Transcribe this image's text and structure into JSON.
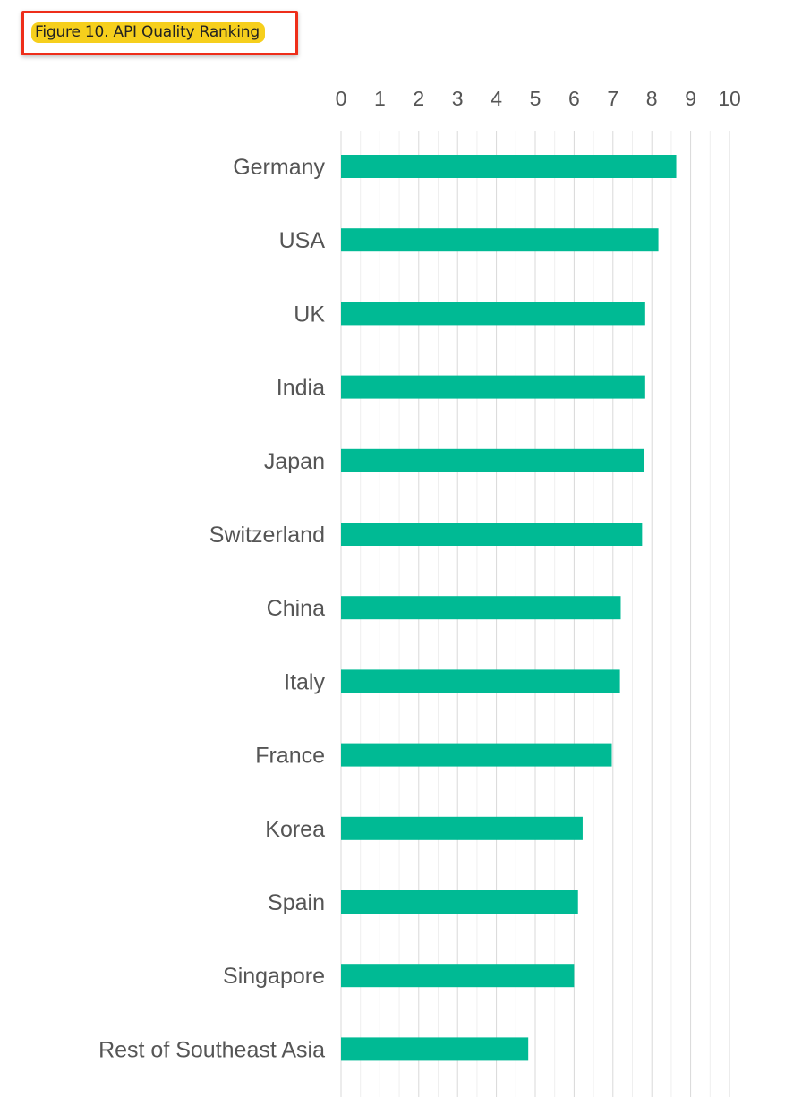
{
  "figure_caption": "Figure 10. API Quality Ranking",
  "colors": {
    "bar": "#00ba94",
    "caption_highlight": "#f6cf1c",
    "caption_border": "#ee2e1a",
    "text": "#555555",
    "grid_major": "#d9d9d9",
    "grid_minor": "#efefef"
  },
  "chart_data": {
    "type": "bar",
    "orientation": "horizontal",
    "title": "Figure 10. API Quality Ranking",
    "xlabel": "",
    "ylabel": "",
    "xlim": [
      0,
      10
    ],
    "x_ticks": [
      "0",
      "1",
      "2",
      "3",
      "4",
      "5",
      "6",
      "7",
      "8",
      "9",
      "10"
    ],
    "x_axis_position": "top",
    "grid": true,
    "categories": [
      "Germany",
      "USA",
      "UK",
      "India",
      "Japan",
      "Switzerland",
      "China",
      "Italy",
      "France",
      "Korea",
      "Spain",
      "Singapore",
      "Rest of Southeast Asia"
    ],
    "values": [
      8.63,
      8.17,
      7.83,
      7.83,
      7.8,
      7.75,
      7.2,
      7.18,
      6.97,
      6.22,
      6.1,
      6.0,
      4.82
    ]
  }
}
